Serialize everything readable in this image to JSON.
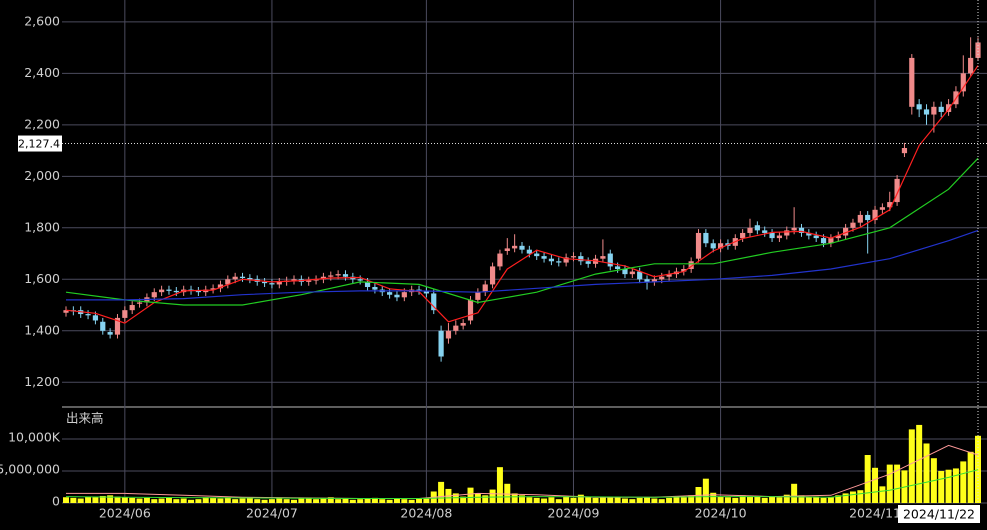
{
  "chart_data": {
    "type": "candlestick",
    "categories": [
      null,
      null,
      null,
      null,
      null,
      null,
      null,
      null,
      "2024/06",
      null,
      null,
      null,
      null,
      null,
      null,
      null,
      null,
      null,
      null,
      null,
      null,
      null,
      null,
      null,
      null,
      null,
      null,
      null,
      "2024/07",
      null,
      null,
      null,
      null,
      null,
      null,
      null,
      null,
      null,
      null,
      null,
      null,
      null,
      null,
      null,
      null,
      null,
      null,
      null,
      null,
      "2024/08",
      null,
      null,
      null,
      null,
      null,
      null,
      null,
      null,
      null,
      null,
      null,
      null,
      null,
      null,
      null,
      null,
      null,
      null,
      null,
      "2024/09",
      null,
      null,
      null,
      null,
      null,
      null,
      null,
      null,
      null,
      null,
      null,
      null,
      null,
      null,
      null,
      null,
      null,
      null,
      null,
      "2024/10",
      null,
      null,
      null,
      null,
      null,
      null,
      null,
      null,
      null,
      null,
      null,
      null,
      null,
      null,
      null,
      null,
      null,
      null,
      null,
      null,
      "2024/11",
      null,
      null,
      null,
      null,
      null,
      null,
      null,
      null,
      null,
      null,
      null,
      null,
      null,
      "2024/11/22"
    ],
    "open": [
      1470,
      1480,
      1480,
      1465,
      1460,
      1435,
      1395,
      1385,
      1450,
      1480,
      1505,
      1510,
      1530,
      1550,
      1560,
      1555,
      1550,
      1560,
      1555,
      1550,
      1560,
      1565,
      1580,
      1600,
      1610,
      1605,
      1600,
      1590,
      1585,
      1580,
      1590,
      1595,
      1600,
      1590,
      1595,
      1600,
      1610,
      1615,
      1620,
      1610,
      1600,
      1590,
      1570,
      1560,
      1550,
      1540,
      1530,
      1550,
      1560,
      1555,
      1545,
      1400,
      1370,
      1400,
      1420,
      1440,
      1520,
      1550,
      1580,
      1650,
      1710,
      1720,
      1730,
      1715,
      1700,
      1690,
      1680,
      1670,
      1665,
      1685,
      1690,
      1670,
      1660,
      1680,
      1700,
      1650,
      1640,
      1620,
      1630,
      1600,
      1590,
      1600,
      1610,
      1620,
      1630,
      1640,
      1680,
      1780,
      1740,
      1720,
      1740,
      1730,
      1760,
      1780,
      1810,
      1790,
      1780,
      1760,
      1770,
      1790,
      1800,
      1780,
      1770,
      1760,
      1740,
      1760,
      1770,
      1800,
      1820,
      1850,
      1830,
      1870,
      1880,
      1900,
      2090,
      2270,
      2280,
      2260,
      2240,
      2270,
      2250,
      2280,
      2330,
      2400,
      2460
    ],
    "high": [
      1495,
      1495,
      1495,
      1480,
      1475,
      1450,
      1410,
      1465,
      1495,
      1515,
      1525,
      1545,
      1565,
      1575,
      1575,
      1570,
      1575,
      1575,
      1570,
      1575,
      1580,
      1595,
      1615,
      1625,
      1625,
      1620,
      1615,
      1605,
      1600,
      1605,
      1610,
      1615,
      1615,
      1610,
      1615,
      1625,
      1630,
      1635,
      1635,
      1625,
      1615,
      1605,
      1585,
      1575,
      1565,
      1555,
      1565,
      1575,
      1575,
      1570,
      1560,
      1420,
      1430,
      1440,
      1445,
      1535,
      1565,
      1595,
      1665,
      1715,
      1760,
      1775,
      1745,
      1730,
      1715,
      1705,
      1695,
      1685,
      1700,
      1705,
      1705,
      1685,
      1695,
      1755,
      1715,
      1665,
      1655,
      1645,
      1645,
      1615,
      1615,
      1625,
      1635,
      1645,
      1655,
      1685,
      1795,
      1795,
      1755,
      1755,
      1755,
      1775,
      1795,
      1835,
      1825,
      1805,
      1795,
      1785,
      1805,
      1880,
      1815,
      1795,
      1785,
      1775,
      1775,
      1785,
      1815,
      1835,
      1865,
      1865,
      1885,
      1895,
      1940,
      2005,
      2130,
      2475,
      2300,
      2280,
      2290,
      2290,
      2300,
      2350,
      2470,
      2540,
      2540
    ],
    "low": [
      1455,
      1460,
      1450,
      1445,
      1425,
      1385,
      1370,
      1370,
      1435,
      1465,
      1490,
      1495,
      1515,
      1535,
      1540,
      1535,
      1535,
      1540,
      1535,
      1535,
      1545,
      1550,
      1565,
      1585,
      1590,
      1585,
      1575,
      1570,
      1565,
      1565,
      1575,
      1580,
      1575,
      1575,
      1580,
      1585,
      1595,
      1600,
      1595,
      1585,
      1580,
      1555,
      1545,
      1535,
      1525,
      1515,
      1515,
      1535,
      1540,
      1530,
      1465,
      1280,
      1350,
      1385,
      1405,
      1425,
      1505,
      1535,
      1565,
      1635,
      1695,
      1705,
      1700,
      1685,
      1675,
      1665,
      1655,
      1650,
      1650,
      1670,
      1655,
      1645,
      1645,
      1665,
      1635,
      1625,
      1605,
      1605,
      1585,
      1560,
      1575,
      1585,
      1595,
      1605,
      1615,
      1625,
      1665,
      1725,
      1705,
      1705,
      1715,
      1715,
      1745,
      1765,
      1775,
      1765,
      1745,
      1745,
      1755,
      1775,
      1765,
      1755,
      1745,
      1725,
      1725,
      1745,
      1755,
      1785,
      1805,
      1700,
      1815,
      1855,
      1865,
      1885,
      2075,
      2240,
      2230,
      2200,
      2170,
      2230,
      2235,
      2265,
      2310,
      2390,
      2450
    ],
    "close": [
      1480,
      1475,
      1465,
      1460,
      1440,
      1400,
      1385,
      1450,
      1480,
      1500,
      1510,
      1530,
      1550,
      1560,
      1555,
      1550,
      1560,
      1555,
      1550,
      1560,
      1565,
      1580,
      1600,
      1610,
      1605,
      1600,
      1590,
      1585,
      1580,
      1590,
      1595,
      1600,
      1590,
      1595,
      1600,
      1610,
      1615,
      1620,
      1610,
      1600,
      1595,
      1570,
      1560,
      1550,
      1540,
      1530,
      1550,
      1560,
      1555,
      1545,
      1480,
      1300,
      1400,
      1420,
      1430,
      1520,
      1550,
      1580,
      1650,
      1700,
      1720,
      1730,
      1715,
      1700,
      1690,
      1680,
      1670,
      1665,
      1685,
      1690,
      1670,
      1660,
      1680,
      1690,
      1650,
      1640,
      1620,
      1630,
      1600,
      1590,
      1600,
      1610,
      1620,
      1630,
      1640,
      1670,
      1780,
      1740,
      1720,
      1740,
      1730,
      1760,
      1780,
      1800,
      1790,
      1780,
      1760,
      1770,
      1790,
      1800,
      1780,
      1770,
      1760,
      1740,
      1760,
      1770,
      1800,
      1820,
      1850,
      1830,
      1870,
      1880,
      1900,
      1990,
      2110,
      2460,
      2260,
      2240,
      2270,
      2250,
      2280,
      2330,
      2400,
      2460,
      2520
    ],
    "up_color": "#f08a8a",
    "down_color": "#86d3f0",
    "ylim": [
      1100,
      2650
    ],
    "yticks": [
      {
        "value": 1200,
        "label": "1,200"
      },
      {
        "value": 1400,
        "label": "1,400"
      },
      {
        "value": 1600,
        "label": "1,600"
      },
      {
        "value": 1800,
        "label": "1,800"
      },
      {
        "value": 2000,
        "label": "2,000"
      },
      {
        "value": 2200,
        "label": "2,200"
      },
      {
        "value": 2400,
        "label": "2,400"
      },
      {
        "value": 2600,
        "label": "2,600"
      }
    ],
    "grid": true,
    "ma": [
      {
        "color": "#ff2020",
        "x": [
          0,
          4,
          8,
          12,
          16,
          20,
          24,
          28,
          32,
          36,
          40,
          44,
          48,
          52,
          56,
          60,
          64,
          68,
          72,
          76,
          80,
          84,
          88,
          92,
          96,
          100,
          104,
          108,
          112,
          116,
          120,
          124
        ],
        "values": [
          1480,
          1468,
          1430,
          1510,
          1555,
          1558,
          1600,
          1590,
          1595,
          1605,
          1607,
          1563,
          1552,
          1435,
          1470,
          1640,
          1713,
          1680,
          1672,
          1652,
          1610,
          1630,
          1710,
          1758,
          1782,
          1786,
          1760,
          1802,
          1870,
          2120,
          2260,
          2430
        ]
      },
      {
        "color": "#22cc22",
        "x": [
          0,
          8,
          16,
          24,
          32,
          40,
          48,
          56,
          64,
          72,
          80,
          88,
          96,
          104,
          112,
          120,
          124
        ],
        "values": [
          1550,
          1520,
          1500,
          1500,
          1540,
          1590,
          1580,
          1510,
          1550,
          1620,
          1660,
          1660,
          1705,
          1740,
          1800,
          1950,
          2070
        ]
      },
      {
        "color": "#2233cc",
        "x": [
          0,
          8,
          16,
          24,
          32,
          40,
          48,
          56,
          64,
          72,
          80,
          88,
          96,
          104,
          112,
          120,
          124
        ],
        "values": [
          1520,
          1520,
          1525,
          1540,
          1550,
          1555,
          1555,
          1550,
          1565,
          1580,
          1590,
          1600,
          1615,
          1640,
          1680,
          1750,
          1790
        ]
      }
    ],
    "crosshair": {
      "value": 2127.4,
      "label": "2,127.4"
    },
    "volume": {
      "label": "出来高",
      "color": "#ffff1a",
      "ylim": [
        0,
        15000000
      ],
      "yticks": [
        0,
        {
          "value": 5000000,
          "label": "5,000,000"
        },
        {
          "value": 10000000,
          "label": "10,000K"
        }
      ],
      "values": [
        900000,
        800000,
        700000,
        1000000,
        900000,
        1100000,
        1200000,
        1000000,
        900000,
        800000,
        700000,
        800000,
        600000,
        700000,
        900000,
        600000,
        700000,
        500000,
        600000,
        900000,
        800000,
        700000,
        900000,
        600000,
        700000,
        800000,
        600000,
        500000,
        600000,
        700000,
        600000,
        500000,
        800000,
        700000,
        600000,
        700000,
        900000,
        600000,
        700000,
        500000,
        600000,
        700000,
        800000,
        600000,
        500000,
        700000,
        600000,
        500000,
        700000,
        800000,
        1800000,
        3300000,
        2200000,
        1500000,
        1000000,
        2400000,
        1500000,
        1200000,
        2100000,
        5600000,
        3000000,
        1500000,
        1200000,
        900000,
        800000,
        700000,
        900000,
        600000,
        1000000,
        800000,
        1300000,
        900000,
        800000,
        900000,
        1000000,
        900000,
        700000,
        600000,
        800000,
        900000,
        700000,
        600000,
        800000,
        1000000,
        900000,
        1200000,
        2500000,
        3800000,
        1600000,
        1000000,
        900000,
        800000,
        1200000,
        1000000,
        1100000,
        800000,
        1000000,
        900000,
        1300000,
        3000000,
        1200000,
        900000,
        1000000,
        800000,
        900000,
        1200000,
        1500000,
        1800000,
        2000000,
        7500000,
        5500000,
        2600000,
        6000000,
        6000000,
        5100000,
        11500000,
        12200000,
        9300000,
        7000000,
        5000000,
        5200000,
        5400000,
        6500000,
        8000000,
        10500000
      ],
      "ma": [
        {
          "color": "#ff9999",
          "x": [
            0,
            8,
            16,
            24,
            32,
            40,
            48,
            56,
            64,
            72,
            80,
            88,
            96,
            104,
            112,
            120,
            124
          ],
          "values": [
            1500000,
            1500000,
            1200000,
            900000,
            800000,
            700000,
            700000,
            1500000,
            1300000,
            900000,
            900000,
            1300000,
            1000000,
            1200000,
            4500000,
            9000000,
            7500000
          ]
        },
        {
          "color": "#33dd33",
          "x": [
            0,
            8,
            16,
            24,
            32,
            40,
            48,
            56,
            64,
            72,
            80,
            88,
            96,
            104,
            112,
            120,
            124
          ],
          "values": [
            1000000,
            900000,
            850000,
            800000,
            750000,
            700000,
            700000,
            900000,
            1000000,
            950000,
            900000,
            1000000,
            1000000,
            900000,
            2000000,
            4000000,
            5200000
          ]
        }
      ]
    }
  }
}
